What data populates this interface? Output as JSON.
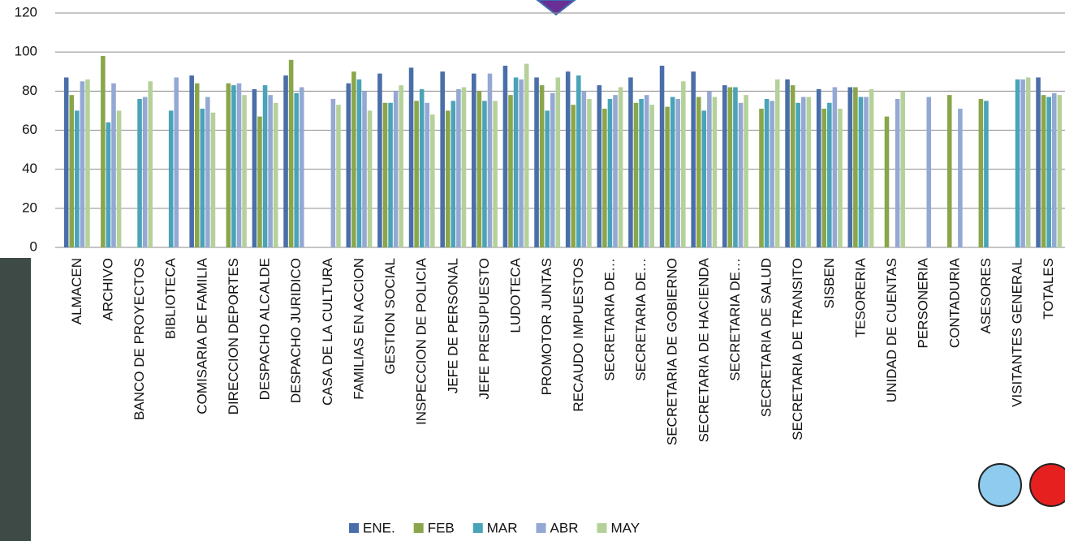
{
  "chart_data": {
    "type": "bar",
    "categories": [
      "ALMACEN",
      "ARCHIVO",
      "BANCO DE PROYECTOS",
      "BIBLIOTECA",
      "COMISARIA DE FAMILIA",
      "DIRECCION DEPORTES",
      "DESPACHO ALCALDE",
      "DESPACHO JURIDICO",
      "CASA DE LA CULTURA",
      "FAMILIAS EN ACCION",
      "GESTION SOCIAL",
      "INSPECCION DE POLICIA",
      "JEFE DE PERSONAL",
      "JEFE PRESUPUESTO",
      "LUDOTECA",
      "PROMOTOR JUNTAS",
      "RECAUDO IMPUESTOS",
      "SECRETARIA DE…",
      "SECRETARIA DE…",
      "SECRETARIA DE GOBIERNO",
      "SECRETARIA DE HACIENDA",
      "SECRETARIA DE…",
      "SECRETARIA DE SALUD",
      "SECRETARIA DE TRANSITO",
      "SISBEN",
      "TESORERIA",
      "UNIDAD DE CUENTAS",
      "PERSONERIA",
      "CONTADURIA",
      "ASESORES",
      "VISITANTES GENERAL",
      "TOTALES"
    ],
    "series": [
      {
        "name": "ENE.",
        "color": "#4a6ea9",
        "values": [
          87,
          null,
          null,
          null,
          88,
          null,
          81,
          88,
          null,
          84,
          89,
          92,
          90,
          89,
          93,
          87,
          90,
          83,
          87,
          93,
          90,
          83,
          null,
          86,
          81,
          82,
          null,
          null,
          null,
          null,
          null,
          87
        ]
      },
      {
        "name": "FEB",
        "color": "#8aa64a",
        "values": [
          78,
          98,
          null,
          null,
          84,
          84,
          67,
          96,
          null,
          90,
          74,
          75,
          70,
          80,
          78,
          83,
          73,
          71,
          74,
          72,
          77,
          82,
          71,
          83,
          71,
          82,
          67,
          null,
          78,
          76,
          null,
          78
        ]
      },
      {
        "name": "MAR",
        "color": "#4aa3b8",
        "values": [
          70,
          64,
          76,
          70,
          71,
          83,
          83,
          79,
          null,
          86,
          74,
          81,
          75,
          75,
          87,
          70,
          88,
          76,
          76,
          77,
          70,
          82,
          76,
          74,
          74,
          77,
          null,
          null,
          null,
          75,
          86,
          77
        ]
      },
      {
        "name": "ABR",
        "color": "#94a8d4",
        "values": [
          85,
          84,
          77,
          87,
          77,
          84,
          78,
          82,
          76,
          80,
          80,
          74,
          81,
          89,
          86,
          79,
          80,
          78,
          78,
          76,
          80,
          74,
          75,
          77,
          82,
          77,
          76,
          77,
          71,
          null,
          86,
          79
        ]
      },
      {
        "name": "MAY",
        "color": "#b5d19a",
        "values": [
          86,
          70,
          85,
          null,
          69,
          78,
          74,
          null,
          73,
          70,
          83,
          68,
          82,
          75,
          94,
          87,
          76,
          82,
          73,
          85,
          77,
          78,
          86,
          77,
          71,
          81,
          80,
          null,
          null,
          null,
          87,
          78
        ]
      }
    ],
    "ylim": [
      0,
      120
    ],
    "yticks": [
      0,
      20,
      40,
      60,
      80,
      100,
      120
    ],
    "grid": true,
    "legend": "bottom"
  }
}
